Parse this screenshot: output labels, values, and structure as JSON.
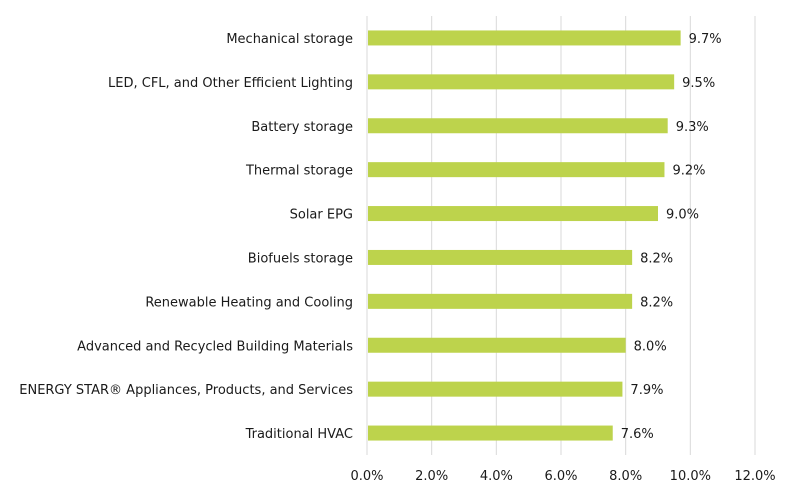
{
  "chart_data": {
    "type": "bar",
    "orientation": "horizontal",
    "title": "",
    "xlabel": "",
    "ylabel": "",
    "categories": [
      "Mechanical storage",
      "LED, CFL, and Other Efficient Lighting",
      "Battery storage",
      "Thermal storage",
      "Solar EPG",
      "Biofuels storage",
      "Renewable Heating and Cooling",
      "Advanced and Recycled Building Materials",
      "ENERGY STAR® Appliances, Products, and Services",
      "Traditional HVAC"
    ],
    "values": [
      9.7,
      9.5,
      9.3,
      9.2,
      9.0,
      8.2,
      8.2,
      8.0,
      7.9,
      7.6
    ],
    "value_labels": [
      "9.7%",
      "9.5%",
      "9.3%",
      "9.2%",
      "9.0%",
      "8.2%",
      "8.2%",
      "8.0%",
      "7.9%",
      "7.6%"
    ],
    "xlim": [
      0,
      12
    ],
    "xticks": [
      0,
      2,
      4,
      6,
      8,
      10,
      12
    ],
    "xtick_labels": [
      "0.0%",
      "2.0%",
      "4.0%",
      "6.0%",
      "8.0%",
      "10.0%",
      "12.0%"
    ],
    "grid": "vertical",
    "legend": "none",
    "colors": {
      "bar": "#bdd34c",
      "grid": "#d9d9d9",
      "text": "#1a1a1a"
    }
  }
}
